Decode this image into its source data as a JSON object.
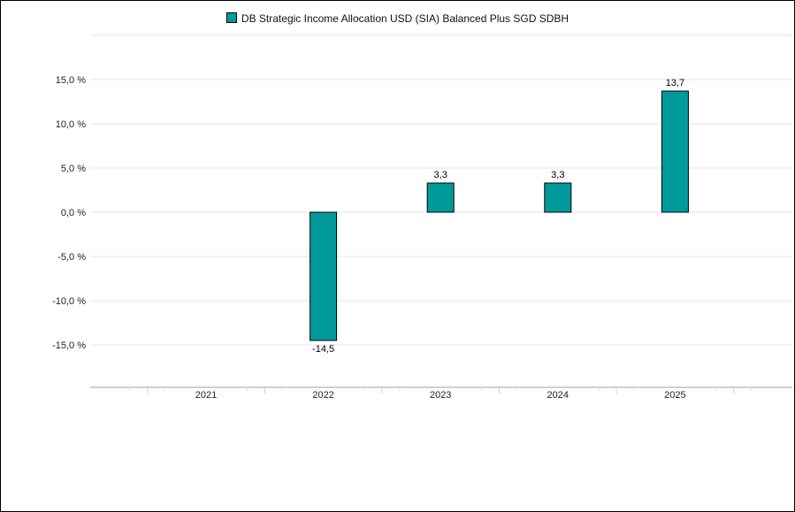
{
  "chart_data": {
    "type": "bar",
    "title": "",
    "xlabel": "",
    "ylabel": "",
    "categories": [
      "2021",
      "2022",
      "2023",
      "2024",
      "2025"
    ],
    "series": [
      {
        "name": "DB Strategic Income Allocation USD (SIA) Balanced Plus SGD SDBH",
        "values": [
          null,
          -14.5,
          3.3,
          3.3,
          13.7
        ],
        "data_labels": [
          "",
          "-14,5",
          "3,3",
          "3,3",
          "13,7"
        ],
        "color": "#009a9a"
      }
    ],
    "y_ticks": [
      15,
      10,
      5,
      0,
      -5,
      -10,
      -15
    ],
    "y_tick_labels": [
      "15,0 %",
      "10,0 %",
      "5,0 %",
      "0,0 %",
      "-5,0 %",
      "-10,0 %",
      "-15,0 %"
    ],
    "ylim": [
      -20,
      20
    ],
    "grid": true,
    "legend_position": "top-center"
  }
}
